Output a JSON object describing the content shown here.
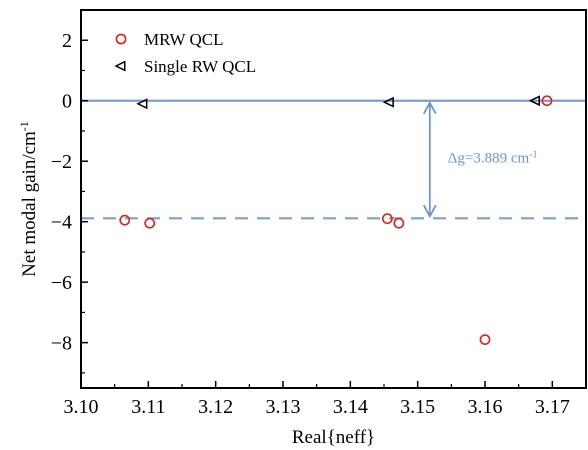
{
  "chart_data": {
    "type": "scatter",
    "xlabel": "Real{neff}",
    "ylabel": "Net modal gain/cm",
    "ylabel_sup": "-1",
    "xlim": [
      3.1,
      3.175
    ],
    "ylim": [
      -9.5,
      3
    ],
    "x_ticks": [
      3.1,
      3.11,
      3.12,
      3.13,
      3.14,
      3.15,
      3.16,
      3.17
    ],
    "x_tick_labels": [
      "3.10",
      "3.11",
      "3.12",
      "3.13",
      "3.14",
      "3.15",
      "3.16",
      "3.17"
    ],
    "y_ticks": [
      2,
      0,
      -2,
      -4,
      -6,
      -8
    ],
    "y_tick_labels": [
      "2",
      "0",
      "−2",
      "−4",
      "−6",
      "−8"
    ],
    "grid": false,
    "legend_position": "top-left",
    "series": [
      {
        "name": "MRW QCL",
        "marker": "circle",
        "color": "#e0201b",
        "x": [
          3.1065,
          3.1102,
          3.1455,
          3.1472,
          3.16,
          3.1692
        ],
        "y": [
          -3.95,
          -4.05,
          -3.9,
          -4.05,
          -7.9,
          0.0
        ]
      },
      {
        "name": "Single RW QCL",
        "marker": "triangle-left",
        "color": "#000000",
        "x": [
          3.1092,
          3.1458,
          3.1675
        ],
        "y": [
          -0.1,
          -0.05,
          0.0
        ]
      }
    ],
    "reference_lines": {
      "solid_y": 0,
      "dashed_y": -3.889,
      "color": "#7d9fd0"
    },
    "annotation": {
      "prefix": "Δg=3.889 cm",
      "sup": "-1",
      "arrow_x": 3.1518,
      "arrow_from_y": 0,
      "arrow_to_y": -3.889,
      "color": "#6f95cc"
    }
  }
}
